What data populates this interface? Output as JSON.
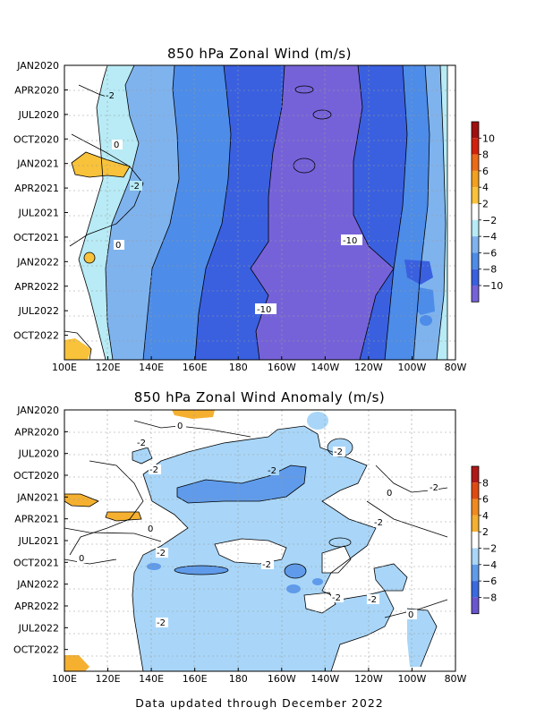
{
  "footer": "Data updated through December 2022",
  "chart_data": [
    {
      "type": "heatmap",
      "title": "850 hPa Zonal Wind (m/s)",
      "x_ticks": [
        "100E",
        "120E",
        "140E",
        "160E",
        "180",
        "160W",
        "140W",
        "120W",
        "100W",
        "80W"
      ],
      "y_ticks": [
        "JAN2020",
        "APR2020",
        "JUL2020",
        "OCT2020",
        "JAN2021",
        "APR2021",
        "JUL2021",
        "OCT2021",
        "JAN2022",
        "APR2022",
        "JUL2022",
        "OCT2022"
      ],
      "colorbar": {
        "labels": [
          "10",
          "8",
          "6",
          "4",
          "2",
          "−2",
          "−4",
          "−6",
          "−8",
          "−10"
        ],
        "colors": [
          "#a01010",
          "#d2220c",
          "#ec6a18",
          "#f2a020",
          "#f8c23a",
          "#ffffff",
          "#b8ebf5",
          "#7fb3ee",
          "#4d8ce8",
          "#3a60e0",
          "#7662d8"
        ]
      },
      "contour_labels": [
        "-2",
        "0",
        "-2",
        "0",
        "-10",
        "-10"
      ],
      "approx_values": {
        "x": [
          "100E",
          "120E",
          "140E",
          "160E",
          "180",
          "160W",
          "140W",
          "120W",
          "100W",
          "80W"
        ],
        "rows": [
          {
            "month": "JAN2020",
            "values": [
              0,
              0,
              0,
              -4,
              -6,
              -10,
              -10,
              -8,
              -4,
              0
            ]
          },
          {
            "month": "JUL2020",
            "values": [
              0,
              -1,
              -4,
              -6,
              -8,
              -10,
              -10,
              -8,
              -4,
              0
            ]
          },
          {
            "month": "JAN2021",
            "values": [
              2,
              0,
              -2,
              -6,
              -8,
              -11,
              -11,
              -8,
              -4,
              -1
            ]
          },
          {
            "month": "JUL2021",
            "values": [
              0,
              -2,
              -4,
              -6,
              -8,
              -10,
              -11,
              -8,
              -5,
              -1
            ]
          },
          {
            "month": "JAN2022",
            "values": [
              0,
              -1,
              -4,
              -6,
              -8,
              -11,
              -11,
              -10,
              -6,
              -1
            ]
          },
          {
            "month": "JUL2022",
            "values": [
              0,
              -1,
              -4,
              -6,
              -10,
              -10,
              -10,
              -8,
              -4,
              -1
            ]
          },
          {
            "month": "OCT2022",
            "values": [
              2,
              0,
              -4,
              -6,
              -8,
              -9,
              -8,
              -6,
              -4,
              0
            ]
          }
        ]
      }
    },
    {
      "type": "heatmap",
      "title": "850 hPa Zonal Wind Anomaly (m/s)",
      "x_ticks": [
        "100E",
        "120E",
        "140E",
        "160E",
        "180",
        "160W",
        "140W",
        "120W",
        "100W",
        "80W"
      ],
      "y_ticks": [
        "JAN2020",
        "APR2020",
        "JUL2020",
        "OCT2020",
        "JAN2021",
        "APR2021",
        "JUL2021",
        "OCT2021",
        "JAN2022",
        "APR2022",
        "JUL2022",
        "OCT2022"
      ],
      "colorbar": {
        "labels": [
          "8",
          "6",
          "4",
          "2",
          "−2",
          "−4",
          "−6",
          "−8"
        ],
        "colors": [
          "#b01818",
          "#e04a10",
          "#f08a20",
          "#f5b030",
          "#ffffff",
          "#a9d6f8",
          "#5f9bea",
          "#3a6ae0",
          "#6a55d0"
        ]
      },
      "contour_labels": [
        "0",
        "-2",
        "-2",
        "-2",
        "-2",
        "0",
        "-2",
        "-2",
        "0",
        "-2",
        "-2",
        "0",
        "-2",
        "-2",
        "0",
        "-2"
      ],
      "approx_values": {
        "x": [
          "100E",
          "120E",
          "140E",
          "160E",
          "180",
          "160W",
          "140W",
          "120W",
          "100W",
          "80W"
        ],
        "rows": [
          {
            "month": "JAN2020",
            "values": [
              0,
              0,
              1,
              0,
              0,
              -1,
              -2,
              -1,
              0,
              0
            ]
          },
          {
            "month": "JUL2020",
            "values": [
              0,
              0,
              -2,
              -1,
              -2,
              -2,
              -2,
              -2,
              0,
              0
            ]
          },
          {
            "month": "JAN2021",
            "values": [
              2,
              0,
              -1,
              -3,
              -3,
              -4,
              -4,
              -2,
              0,
              0
            ]
          },
          {
            "month": "JUL2021",
            "values": [
              0,
              0,
              -2,
              -3,
              -2,
              0,
              -2,
              -2,
              0,
              0
            ]
          },
          {
            "month": "JAN2022",
            "values": [
              0,
              -1,
              -2,
              -3,
              -2,
              -3,
              -2,
              -2,
              -1,
              0
            ]
          },
          {
            "month": "JUL2022",
            "values": [
              0,
              -1,
              -2,
              -2,
              -2,
              -3,
              -2,
              -2,
              -1,
              0
            ]
          },
          {
            "month": "OCT2022",
            "values": [
              2,
              0,
              -2,
              -2,
              -2,
              -2,
              -2,
              -2,
              -1,
              0
            ]
          }
        ]
      }
    }
  ]
}
